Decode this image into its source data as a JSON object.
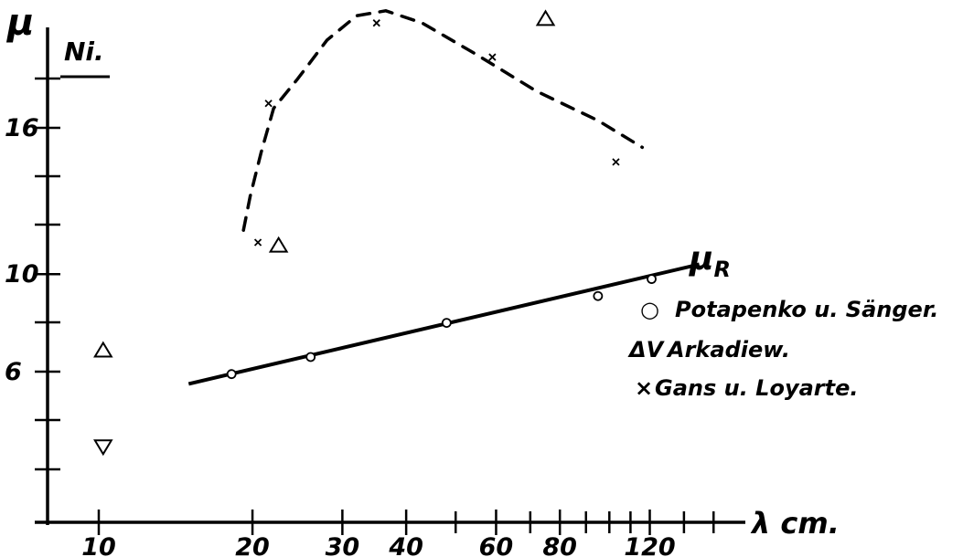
{
  "chart_data": {
    "type": "scatter",
    "panel_label": "Ni.",
    "ylabel": "μ",
    "xlabel": "λ cm.",
    "x_scale": "log",
    "x_ticks": [
      10,
      20,
      30,
      40,
      60,
      80,
      120
    ],
    "x_tick_labels": [
      "10",
      "20",
      "30",
      "40",
      "60",
      "80",
      "120"
    ],
    "y_ticks": [
      6,
      10,
      16
    ],
    "y_tick_labels": [
      "6",
      "10",
      "16"
    ],
    "xlim": [
      8,
      180
    ],
    "ylim": [
      2.0,
      21.0
    ],
    "grid": false,
    "legend_position": "right",
    "series": [
      {
        "name": "Potapenko u. Sänger.",
        "legend_symbol": "○",
        "marker": "circle",
        "points": [
          [
            18.2,
            5.9
          ],
          [
            26,
            6.6
          ],
          [
            48,
            8.0
          ],
          [
            95,
            9.1
          ],
          [
            121,
            9.8
          ]
        ]
      },
      {
        "name": "Arkadiew.",
        "legend_symbol": "ΔV",
        "marker": "triangle",
        "points": [
          [
            10.2,
            6.9
          ],
          [
            22.5,
            11.2
          ],
          [
            75,
            20.5
          ]
        ]
      },
      {
        "name": "Arkadiew.",
        "marker": "triangle-down",
        "points": [
          [
            10.2,
            2.9
          ]
        ]
      },
      {
        "name": "Gans u. Loyarte.",
        "legend_symbol": "×",
        "marker": "x",
        "points": [
          [
            20.5,
            11.3
          ],
          [
            21.5,
            17.0
          ],
          [
            35,
            20.3
          ],
          [
            59,
            18.9
          ],
          [
            103,
            14.6
          ]
        ]
      }
    ],
    "lines": [
      {
        "label": "μR",
        "style": "solid",
        "points": [
          [
            15,
            5.5
          ],
          [
            150,
            10.4
          ]
        ]
      },
      {
        "style": "dashed",
        "points": [
          [
            19.2,
            11.8
          ],
          [
            19.8,
            13.2
          ],
          [
            20.8,
            15.0
          ],
          [
            22,
            16.8
          ],
          [
            24.5,
            18.0
          ],
          [
            28,
            19.6
          ],
          [
            32,
            20.6
          ],
          [
            36.5,
            20.8
          ],
          [
            43,
            20.3
          ],
          [
            55,
            19.0
          ],
          [
            72,
            17.5
          ],
          [
            95,
            16.3
          ],
          [
            116,
            15.2
          ]
        ]
      }
    ],
    "line_label": {
      "main": "μ",
      "subscript": "R"
    }
  }
}
